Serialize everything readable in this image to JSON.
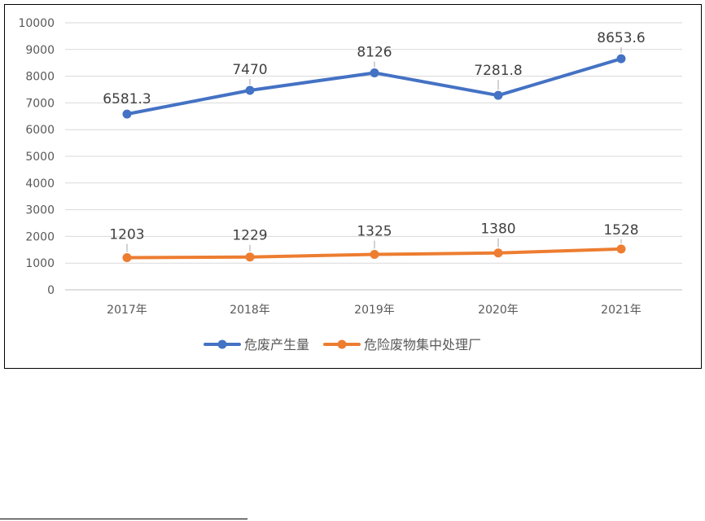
{
  "chart_data": {
    "type": "line",
    "categories": [
      "2017年",
      "2018年",
      "2019年",
      "2020年",
      "2021年"
    ],
    "ylim": [
      0,
      10000
    ],
    "yticks": [
      0,
      1000,
      2000,
      3000,
      4000,
      5000,
      6000,
      7000,
      8000,
      9000,
      10000
    ],
    "grid": true,
    "legend_position": "bottom",
    "series": [
      {
        "name": "危废产生量",
        "color": "#4472C4",
        "values": [
          6581.3,
          7470,
          8126,
          7281.8,
          8653.6
        ],
        "labels": [
          "6581.3",
          "7470",
          "8126",
          "7281.8",
          "8653.6"
        ]
      },
      {
        "name": "危险废物集中处理厂",
        "color": "#ED7D31",
        "values": [
          1203,
          1229,
          1325,
          1380,
          1528
        ],
        "labels": [
          "1203",
          "1229",
          "1325",
          "1380",
          "1528"
        ]
      }
    ]
  }
}
